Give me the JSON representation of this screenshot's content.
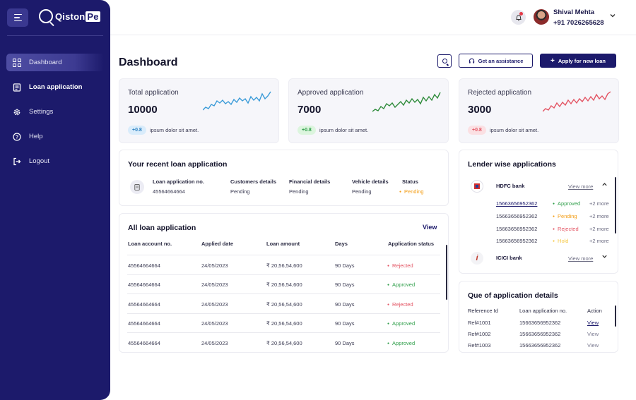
{
  "app": {
    "logo_text": "Qiston",
    "logo_text_pe": "Pe"
  },
  "sidebar": {
    "items": [
      {
        "label": "Dashboard",
        "icon": "grid-icon",
        "active": true
      },
      {
        "label": "Loan application",
        "icon": "document-icon",
        "active": false
      },
      {
        "label": "Settings",
        "icon": "gear-icon",
        "active": false
      },
      {
        "label": "Help",
        "icon": "help-icon",
        "active": false
      },
      {
        "label": "Logout",
        "icon": "logout-icon",
        "active": false
      }
    ]
  },
  "header": {
    "user_name": "Shival Mehta",
    "user_phone": "+91 7026265628"
  },
  "page": {
    "title": "Dashboard",
    "assist_label": "Get an assistance",
    "apply_label": "Apply for new loan",
    "apply_plus": "+"
  },
  "stats": [
    {
      "label": "Total application",
      "value": "10000",
      "badge": "+0.8",
      "desc": "ipsum dolor sit amet.",
      "color": "#3a9bd8",
      "badge_bg": "#d9ecfb",
      "badge_color": "#2a7fc0"
    },
    {
      "label": "Approved application",
      "value": "7000",
      "badge": "+0.8",
      "desc": "ipsum dolor sit amet.",
      "color": "#2e8b3a",
      "badge_bg": "#dcf5de",
      "badge_color": "#2e9e49"
    },
    {
      "label": "Rejected application",
      "value": "3000",
      "badge": "+0.8",
      "desc": "ipsum dolor sit amet.",
      "color": "#e35463",
      "badge_bg": "#fbe0e3",
      "badge_color": "#e35463"
    }
  ],
  "recent": {
    "title": "Your recent loan application",
    "headers": [
      "Loan application no.",
      "Customers details",
      "Financial details",
      "Vehicle details",
      "Status"
    ],
    "values": [
      "45564664664",
      "Pending",
      "Pending",
      "Pending",
      "Pending"
    ]
  },
  "all_loans": {
    "title": "All loan application",
    "view_label": "View",
    "headers": [
      "Loan account no.",
      "Applied date",
      "Loan amount",
      "Days",
      "Application status"
    ],
    "rows": [
      {
        "account": "45564664664",
        "date": "24/05/2023",
        "amount": "₹ 20,56,54,600",
        "days": "90 Days",
        "status": "Rejected"
      },
      {
        "account": "45564664664",
        "date": "24/05/2023",
        "amount": "₹ 20,56,54,600",
        "days": "90 Days",
        "status": "Approved"
      },
      {
        "account": "45564664664",
        "date": "24/05/2023",
        "amount": "₹ 20,56,54,600",
        "days": "90 Days",
        "status": "Rejected"
      },
      {
        "account": "45564664664",
        "date": "24/05/2023",
        "amount": "₹ 20,56,54,600",
        "days": "90 Days",
        "status": "Approved"
      },
      {
        "account": "45564664664",
        "date": "24/05/2023",
        "amount": "₹ 20,56,54,600",
        "days": "90 Days",
        "status": "Approved"
      }
    ]
  },
  "lender": {
    "title": "Lender wise applications",
    "banks": [
      {
        "name": "HDFC bank",
        "view_more": "View more",
        "expanded": true,
        "apps": [
          {
            "id": "15663656952362",
            "status": "Approved",
            "more": "+2 more"
          },
          {
            "id": "15663656952362",
            "status": "Pending",
            "more": "+2 more"
          },
          {
            "id": "15663656952362",
            "status": "Rejected",
            "more": "+2 more"
          },
          {
            "id": "15663656952362",
            "status": "Hold",
            "more": "+2 more"
          }
        ]
      },
      {
        "name": "ICICI bank",
        "view_more": "View more",
        "expanded": false
      }
    ]
  },
  "queue": {
    "title": "Que of application details",
    "headers": [
      "Reference Id",
      "Loan application no.",
      "Action"
    ],
    "rows": [
      {
        "ref": "Ref#1001",
        "app": "15663656952362",
        "action": "View"
      },
      {
        "ref": "Ref#1002",
        "app": "15663656952362",
        "action": "View"
      },
      {
        "ref": "Ref#1003",
        "app": "15663656952362",
        "action": "View"
      }
    ]
  }
}
